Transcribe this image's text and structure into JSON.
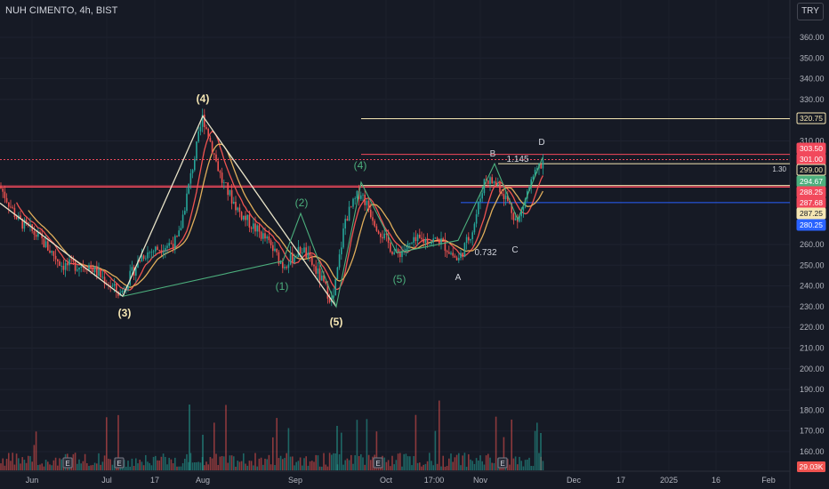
{
  "header": {
    "symbol_title": "NUH CIMENTO, 4h, BIST",
    "currency_button": "TRY"
  },
  "colors": {
    "background": "#161a25",
    "candle_up": "#26a69a",
    "candle_down": "#ef5350",
    "line_white": "#e8e3c8",
    "wave_green": "#4caf7d",
    "level_red": "#f2495c",
    "level_cream": "#f5e6b3",
    "level_blue": "#2962ff"
  },
  "chart_data": {
    "type": "candlestick",
    "title": "NUH CIMENTO, 4h, BIST",
    "y_axis": {
      "ticks": [
        "360.00",
        "350.00",
        "340.00",
        "330.00",
        "310.00",
        "260.00",
        "250.00",
        "240.00",
        "230.00",
        "220.00",
        "210.00",
        "200.00",
        "190.00",
        "180.00",
        "170.00",
        "160.00"
      ]
    },
    "x_axis": {
      "ticks": [
        "Jun",
        "Jul",
        "17",
        "Aug",
        "Sep",
        "Oct",
        "17:00",
        "Nov",
        "Dec",
        "17",
        "2025",
        "16",
        "Feb"
      ]
    },
    "price_labels": [
      {
        "text": "320.75",
        "style": "cream-outline"
      },
      {
        "text": "303.50",
        "style": "red"
      },
      {
        "text": "301.00",
        "style": "red"
      },
      {
        "text": "299.00",
        "style": "cream-outline"
      },
      {
        "text": "294.67",
        "style": "green"
      },
      {
        "text": "288.25",
        "style": "red"
      },
      {
        "text": "287.68",
        "style": "red"
      },
      {
        "text": "287.25",
        "style": "cream"
      },
      {
        "text": "280.25",
        "style": "blue"
      }
    ],
    "volume_label": "29.03K",
    "annotations": {
      "ratio_right": "1.30",
      "fib_1145": "1.145",
      "fib_0732": "0.732",
      "waves_white": [
        "(3)",
        "(4)",
        "(5)"
      ],
      "waves_green": [
        "(1)",
        "(2)",
        "(4)",
        "(5)"
      ],
      "abcd": [
        "A",
        "B",
        "C",
        "D"
      ],
      "earnings_markers": [
        "E",
        "E",
        "E",
        "E"
      ]
    }
  }
}
